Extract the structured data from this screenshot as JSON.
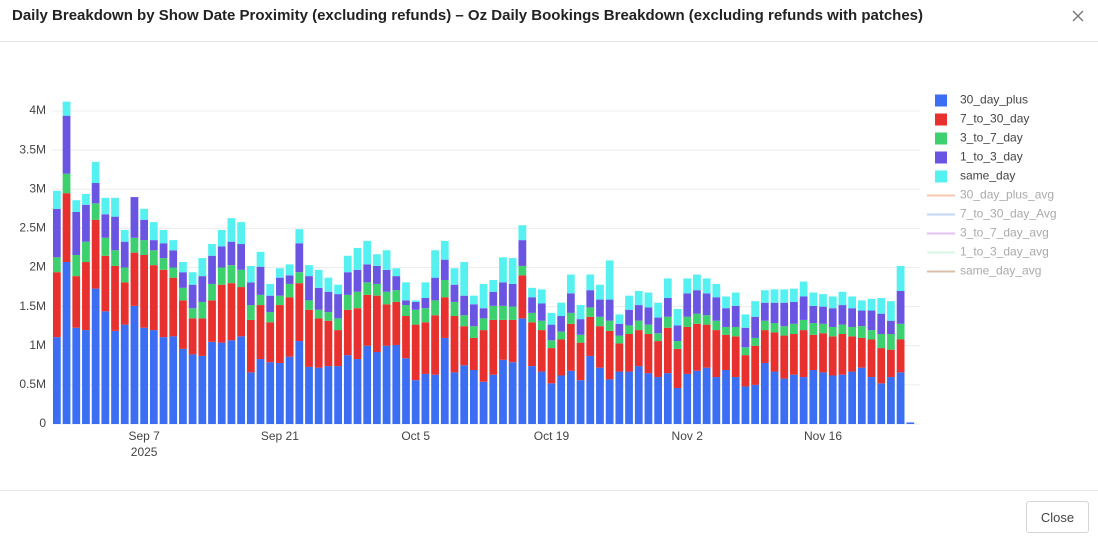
{
  "dialog": {
    "title": "Daily Breakdown by Show Date Proximity (excluding refunds) – Oz Daily Bookings Breakdown (excluding refunds with patches)",
    "close_button": "Close"
  },
  "chart_data": {
    "type": "stacked_bar",
    "x": [
      "2025-08-29",
      "2025-08-30",
      "2025-08-31",
      "2025-09-01",
      "2025-09-02",
      "2025-09-03",
      "2025-09-04",
      "2025-09-05",
      "2025-09-06",
      "2025-09-07",
      "2025-09-08",
      "2025-09-09",
      "2025-09-10",
      "2025-09-11",
      "2025-09-12",
      "2025-09-13",
      "2025-09-14",
      "2025-09-15",
      "2025-09-16",
      "2025-09-17",
      "2025-09-18",
      "2025-09-19",
      "2025-09-20",
      "2025-09-21",
      "2025-09-22",
      "2025-09-23",
      "2025-09-24",
      "2025-09-25",
      "2025-09-26",
      "2025-09-27",
      "2025-09-28",
      "2025-09-29",
      "2025-09-30",
      "2025-10-01",
      "2025-10-02",
      "2025-10-03",
      "2025-10-04",
      "2025-10-05",
      "2025-10-06",
      "2025-10-07",
      "2025-10-08",
      "2025-10-09",
      "2025-10-10",
      "2025-10-11",
      "2025-10-12",
      "2025-10-13",
      "2025-10-14",
      "2025-10-15",
      "2025-10-16",
      "2025-10-17",
      "2025-10-18",
      "2025-10-19",
      "2025-10-20",
      "2025-10-21",
      "2025-10-22",
      "2025-10-23",
      "2025-10-24",
      "2025-10-25",
      "2025-10-26",
      "2025-10-27",
      "2025-10-28",
      "2025-10-29",
      "2025-10-30",
      "2025-10-31",
      "2025-11-01",
      "2025-11-02",
      "2025-11-03",
      "2025-11-04",
      "2025-11-05",
      "2025-11-06",
      "2025-11-07",
      "2025-11-08",
      "2025-11-09",
      "2025-11-10",
      "2025-11-11",
      "2025-11-12",
      "2025-11-13",
      "2025-11-14",
      "2025-11-15",
      "2025-11-16",
      "2025-11-17",
      "2025-11-18",
      "2025-11-19",
      "2025-11-20",
      "2025-11-21",
      "2025-11-22",
      "2025-11-23",
      "2025-11-24",
      "2025-11-25"
    ],
    "xlim": [
      "2025-08-28T12:00:00Z",
      "2025-11-26T00:00:00Z"
    ],
    "xticks": [
      {
        "value": "2025-09-07",
        "label": "Sep 7"
      },
      {
        "value": "2025-09-21",
        "label": "Sep 21"
      },
      {
        "value": "2025-10-05",
        "label": "Oct 5"
      },
      {
        "value": "2025-10-19",
        "label": "Oct 19"
      },
      {
        "value": "2025-11-02",
        "label": "Nov 2"
      },
      {
        "value": "2025-11-16",
        "label": "Nov 16"
      }
    ],
    "xtick_year": {
      "value": "2025-09-07",
      "label": "2025"
    },
    "ylim": [
      0,
      4200000
    ],
    "yticks": [
      0,
      {
        "value": 500000,
        "label": "0.5M"
      },
      {
        "value": 1000000,
        "label": "1M"
      },
      {
        "value": 1500000,
        "label": "1.5M"
      },
      {
        "value": 2000000,
        "label": "2M"
      },
      {
        "value": 2500000,
        "label": "2.5M"
      },
      {
        "value": 3000000,
        "label": "3M"
      },
      {
        "value": 3500000,
        "label": "3.5M"
      },
      {
        "value": 4000000,
        "label": "4M"
      }
    ],
    "grid": true,
    "legend": "right",
    "series": [
      {
        "name": "30_day_plus",
        "color": "#3b6ef2",
        "values": [
          1110000,
          2070000,
          1230000,
          1200000,
          1730000,
          1440000,
          1190000,
          1270000,
          1510000,
          1230000,
          1200000,
          1110000,
          1120000,
          960000,
          890000,
          870000,
          1050000,
          1040000,
          1070000,
          1120000,
          660000,
          830000,
          790000,
          780000,
          860000,
          1060000,
          730000,
          720000,
          740000,
          740000,
          880000,
          830000,
          1000000,
          920000,
          1000000,
          1010000,
          840000,
          560000,
          640000,
          630000,
          1100000,
          660000,
          750000,
          690000,
          540000,
          630000,
          820000,
          790000,
          1350000,
          740000,
          670000,
          520000,
          620000,
          680000,
          560000,
          870000,
          720000,
          570000,
          670000,
          670000,
          740000,
          650000,
          600000,
          650000,
          460000,
          640000,
          680000,
          720000,
          600000,
          690000,
          600000,
          480000,
          500000,
          780000,
          670000,
          580000,
          630000,
          600000,
          690000,
          660000,
          620000,
          630000,
          670000,
          720000,
          600000,
          520000,
          600000,
          660000,
          20000
        ]
      },
      {
        "name": "7_to_30_day",
        "color": "#e8302e",
        "values": [
          830000,
          880000,
          660000,
          870000,
          880000,
          710000,
          830000,
          540000,
          680000,
          930000,
          830000,
          860000,
          750000,
          620000,
          460000,
          480000,
          530000,
          740000,
          730000,
          630000,
          670000,
          690000,
          510000,
          740000,
          760000,
          740000,
          730000,
          630000,
          580000,
          460000,
          580000,
          650000,
          650000,
          720000,
          530000,
          550000,
          540000,
          710000,
          660000,
          760000,
          520000,
          720000,
          500000,
          410000,
          660000,
          700000,
          510000,
          540000,
          550000,
          560000,
          530000,
          450000,
          460000,
          600000,
          480000,
          500000,
          530000,
          620000,
          360000,
          480000,
          460000,
          500000,
          460000,
          580000,
          500000,
          600000,
          600000,
          550000,
          600000,
          450000,
          520000,
          400000,
          500000,
          420000,
          500000,
          550000,
          520000,
          600000,
          450000,
          500000,
          500000,
          520000,
          450000,
          380000,
          480000,
          450000,
          350000,
          420000,
          0
        ]
      },
      {
        "name": "3_to_7_day",
        "color": "#3cd06e",
        "values": [
          190000,
          250000,
          270000,
          260000,
          210000,
          230000,
          200000,
          190000,
          190000,
          190000,
          190000,
          150000,
          130000,
          160000,
          130000,
          210000,
          210000,
          220000,
          230000,
          220000,
          190000,
          130000,
          130000,
          120000,
          170000,
          140000,
          120000,
          110000,
          110000,
          150000,
          190000,
          210000,
          160000,
          150000,
          160000,
          150000,
          140000,
          190000,
          180000,
          190000,
          220000,
          180000,
          140000,
          150000,
          150000,
          180000,
          180000,
          170000,
          120000,
          120000,
          120000,
          100000,
          100000,
          140000,
          100000,
          120000,
          120000,
          130000,
          100000,
          110000,
          120000,
          120000,
          100000,
          140000,
          100000,
          130000,
          130000,
          120000,
          120000,
          100000,
          120000,
          100000,
          100000,
          120000,
          120000,
          120000,
          130000,
          130000,
          150000,
          120000,
          120000,
          120000,
          120000,
          150000,
          120000,
          180000,
          200000,
          200000,
          0
        ]
      },
      {
        "name": "1_to_3_day",
        "color": "#6a55e2",
        "values": [
          620000,
          740000,
          550000,
          470000,
          260000,
          300000,
          430000,
          330000,
          520000,
          260000,
          130000,
          190000,
          220000,
          200000,
          300000,
          330000,
          360000,
          270000,
          300000,
          330000,
          290000,
          360000,
          210000,
          230000,
          110000,
          370000,
          310000,
          280000,
          260000,
          310000,
          290000,
          280000,
          230000,
          230000,
          280000,
          180000,
          60000,
          100000,
          130000,
          290000,
          260000,
          220000,
          250000,
          280000,
          130000,
          180000,
          300000,
          290000,
          330000,
          200000,
          220000,
          200000,
          200000,
          250000,
          200000,
          220000,
          220000,
          270000,
          150000,
          200000,
          200000,
          220000,
          200000,
          240000,
          200000,
          300000,
          300000,
          280000,
          300000,
          240000,
          270000,
          250000,
          270000,
          230000,
          260000,
          300000,
          280000,
          300000,
          220000,
          220000,
          240000,
          250000,
          240000,
          200000,
          250000,
          260000,
          170000,
          420000,
          0
        ]
      },
      {
        "name": "same_day",
        "color": "#55f0f0",
        "values": [
          230000,
          180000,
          150000,
          140000,
          270000,
          210000,
          240000,
          150000,
          0,
          140000,
          230000,
          170000,
          130000,
          130000,
          160000,
          230000,
          150000,
          210000,
          300000,
          280000,
          210000,
          190000,
          150000,
          120000,
          140000,
          180000,
          140000,
          230000,
          180000,
          120000,
          210000,
          280000,
          300000,
          150000,
          250000,
          100000,
          230000,
          20000,
          200000,
          350000,
          240000,
          210000,
          430000,
          110000,
          310000,
          150000,
          320000,
          330000,
          190000,
          120000,
          180000,
          150000,
          170000,
          240000,
          180000,
          200000,
          190000,
          500000,
          120000,
          180000,
          180000,
          190000,
          190000,
          250000,
          210000,
          190000,
          200000,
          190000,
          170000,
          150000,
          170000,
          170000,
          200000,
          160000,
          170000,
          170000,
          170000,
          190000,
          170000,
          160000,
          150000,
          170000,
          150000,
          130000,
          150000,
          200000,
          250000,
          320000,
          0
        ]
      }
    ],
    "avg_series": [
      {
        "name": "30_day_plus_avg",
        "color": "#f5b08c",
        "visible": "legendonly"
      },
      {
        "name": "7_to_30_day_Avg",
        "color": "#aac6f5",
        "visible": "legendonly"
      },
      {
        "name": "3_to_7_day_avg",
        "color": "#dba9f2",
        "visible": "legendonly"
      },
      {
        "name": "1_to_3_day_avg",
        "color": "#c9f2d9",
        "visible": "legendonly"
      },
      {
        "name": "same_day_avg",
        "color": "#c8a48a",
        "visible": "legendonly"
      }
    ]
  }
}
